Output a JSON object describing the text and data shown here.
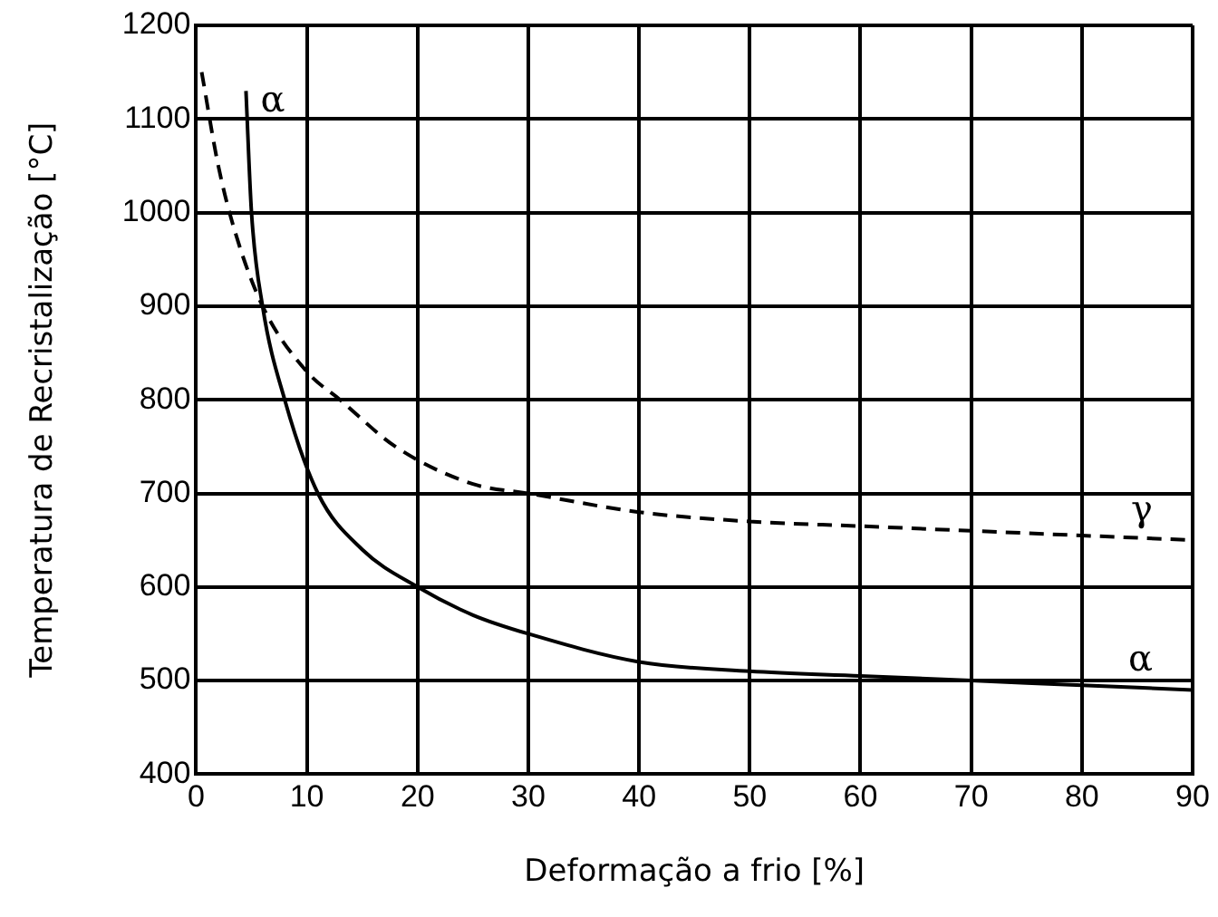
{
  "chart_data": {
    "type": "line",
    "xlabel": "Deformação a frio [%]",
    "ylabel": "Temperatura de Recristalização [°C]",
    "xlim": [
      0,
      90
    ],
    "xticks": [
      0,
      10,
      20,
      30,
      40,
      50,
      60,
      70,
      80,
      90
    ],
    "ylim": [
      400,
      1200
    ],
    "yticks": [
      400,
      500,
      600,
      700,
      800,
      900,
      1000,
      1100,
      1200
    ],
    "grid": true,
    "legend": false,
    "marker": "none",
    "series": [
      {
        "name": "α",
        "color": "#000000",
        "line_style": "solid",
        "x": [
          4.5,
          5,
          6,
          8,
          11,
          15,
          20,
          25,
          30,
          40,
          50,
          60,
          70,
          80,
          90
        ],
        "values": [
          1130,
          1000,
          900,
          800,
          700,
          640,
          600,
          570,
          550,
          520,
          510,
          505,
          500,
          495,
          490
        ]
      },
      {
        "name": "γ",
        "color": "#000000",
        "line_style": "dashed",
        "x": [
          0.5,
          2,
          3.5,
          6,
          10,
          13,
          18,
          25,
          30,
          40,
          50,
          60,
          70,
          80,
          90
        ],
        "values": [
          1150,
          1050,
          980,
          900,
          830,
          800,
          750,
          710,
          700,
          680,
          670,
          665,
          660,
          655,
          650
        ]
      }
    ],
    "annotations": [
      "α"
    ]
  }
}
